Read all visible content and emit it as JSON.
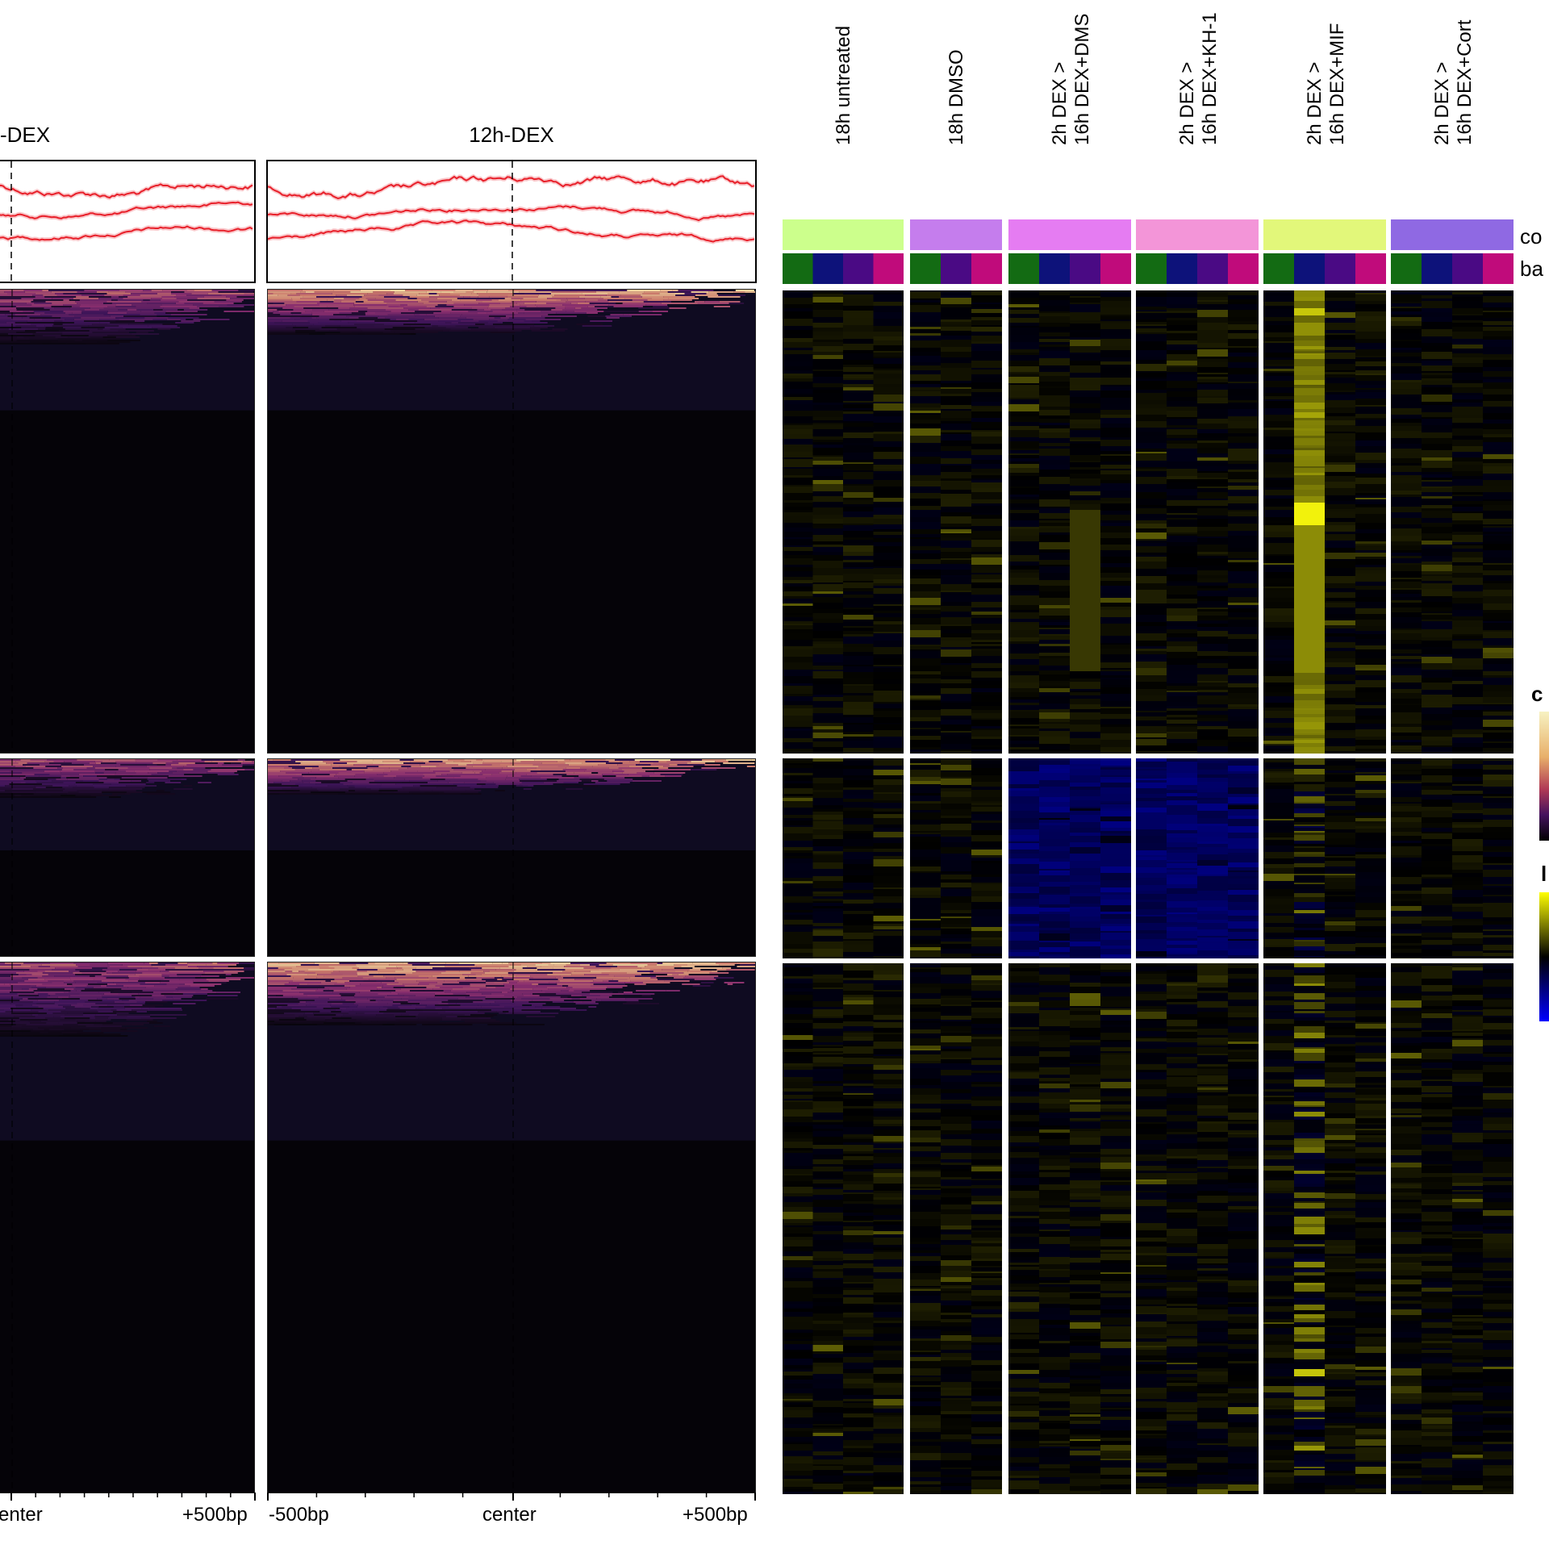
{
  "chart_data": [
    {
      "type": "heatmap",
      "panels": [
        "-DEX",
        "12h-DEX"
      ],
      "x_ticks": [
        "-500bp",
        "center",
        "+500bp"
      ],
      "left_panel_visible_ticks": [
        "enter",
        "+500bp"
      ],
      "profile_line_color": "#e8202a",
      "colormap": [
        "#07050b",
        "#3d1458",
        "#8a2f6e",
        "#c9786a",
        "#efd9a0"
      ]
    },
    {
      "type": "heatmap",
      "columns": [
        {
          "label": "18h untreated",
          "color": "#ccff8c"
        },
        {
          "label": "18h DMSO",
          "color": "#c57ded"
        },
        {
          "label": "2h DEX >\n16h DEX+DMS",
          "color": "#e57cf2"
        },
        {
          "label": "2h DEX >\n16h DEX+KH-1",
          "color": "#f395d8"
        },
        {
          "label": "2h DEX >\n16h DEX+MIF",
          "color": "#e2f77a"
        },
        {
          "label": "2h DEX >\n16h DEX+Cort",
          "color": "#8f69e3"
        }
      ],
      "annotation_rows": [
        "co",
        "ba"
      ],
      "batch_colors": [
        "#136b13",
        "#0d127a",
        "#4a0a84",
        "#c00b7b"
      ],
      "legend_titles": [
        "c",
        "l"
      ],
      "colormap": [
        "#0000e0",
        "#000000",
        "#ffff00"
      ]
    }
  ]
}
